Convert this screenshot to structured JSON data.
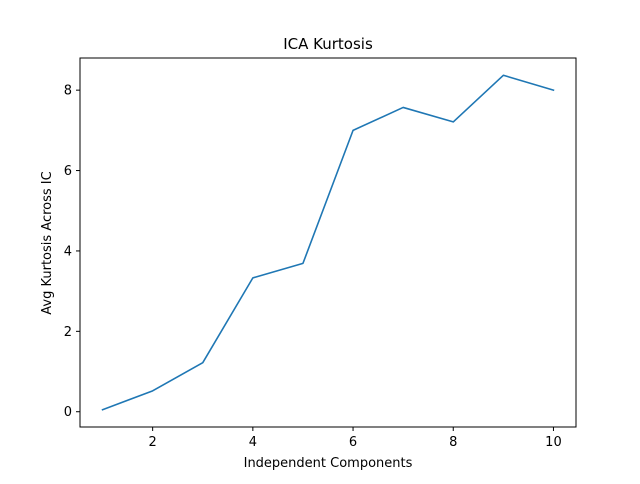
{
  "chart_data": {
    "type": "line",
    "title": "ICA Kurtosis",
    "xlabel": "Independent Components",
    "ylabel": "Avg Kurtosis Across IC",
    "xlim": [
      0.55,
      10.45
    ],
    "ylim": [
      -0.38,
      8.8
    ],
    "xticks": [
      2,
      4,
      6,
      8,
      10
    ],
    "yticks": [
      0,
      2,
      4,
      6,
      8
    ],
    "grid": false,
    "series": [
      {
        "color": "#1f77b4",
        "x": [
          1,
          2,
          3,
          4,
          5,
          6,
          7,
          8,
          9,
          10
        ],
        "y": [
          0.05,
          0.52,
          1.22,
          3.33,
          3.69,
          7.0,
          7.57,
          7.21,
          8.37,
          8.0
        ]
      }
    ]
  }
}
